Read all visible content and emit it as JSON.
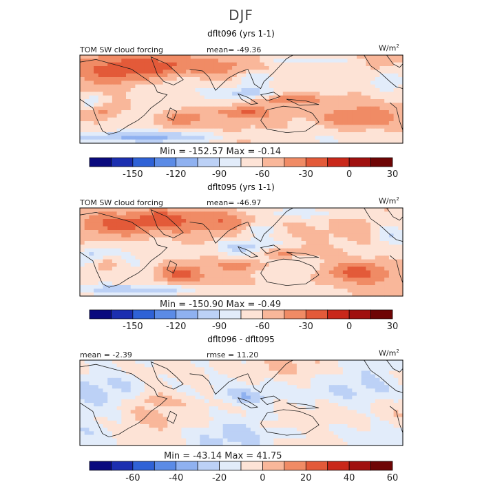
{
  "figure_title": "DJF",
  "colors": {
    "scale": [
      "#0a0a7e",
      "#1c2fb0",
      "#2f62d6",
      "#5b8be6",
      "#8fb1f0",
      "#bcd1f6",
      "#e2ecfa",
      "#fde3d6",
      "#f9b79a",
      "#f08b65",
      "#e35a39",
      "#c9281a",
      "#a0100f",
      "#6e0505"
    ],
    "coast": "#1a1a1a",
    "frame": "#000000"
  },
  "chart_data": [
    {
      "type": "heatmap",
      "title": "dflt096 (yrs 1-1)",
      "field_label": "TOM SW cloud forcing",
      "mean_text": "mean= -49.36",
      "units_base": "W/m",
      "units_exp": "2",
      "min_max_text": "Min = -152.57 Max =  -0.14",
      "min": -152.57,
      "max": -0.14,
      "mean": -49.36,
      "colorbar_ticks": [
        "-150",
        "-120",
        "-90",
        "-60",
        "-30",
        "0",
        "30"
      ],
      "region": "30E-290E, 40S-40N"
    },
    {
      "type": "heatmap",
      "title": "dflt095 (yrs 1-1)",
      "field_label": "TOM SW cloud forcing",
      "mean_text": "mean= -46.97",
      "units_base": "W/m",
      "units_exp": "2",
      "min_max_text": "Min = -150.90 Max =  -0.49",
      "min": -150.9,
      "max": -0.49,
      "mean": -46.97,
      "colorbar_ticks": [
        "-150",
        "-120",
        "-90",
        "-60",
        "-30",
        "0",
        "30"
      ],
      "region": "30E-290E, 40S-40N"
    },
    {
      "type": "heatmap",
      "title": "dflt096 - dflt095",
      "mean_text": "mean =  -2.39",
      "rmse_text": "rmse =  11.20",
      "units_base": "W/m",
      "units_exp": "2",
      "min_max_text": "Min = -43.14 Max =  41.75",
      "min": -43.14,
      "max": 41.75,
      "mean": -2.39,
      "rmse": 11.2,
      "colorbar_ticks": [
        "-60",
        "-40",
        "-20",
        "0",
        "20",
        "40",
        "60"
      ],
      "region": "30E-290E, 40S-40N"
    }
  ]
}
